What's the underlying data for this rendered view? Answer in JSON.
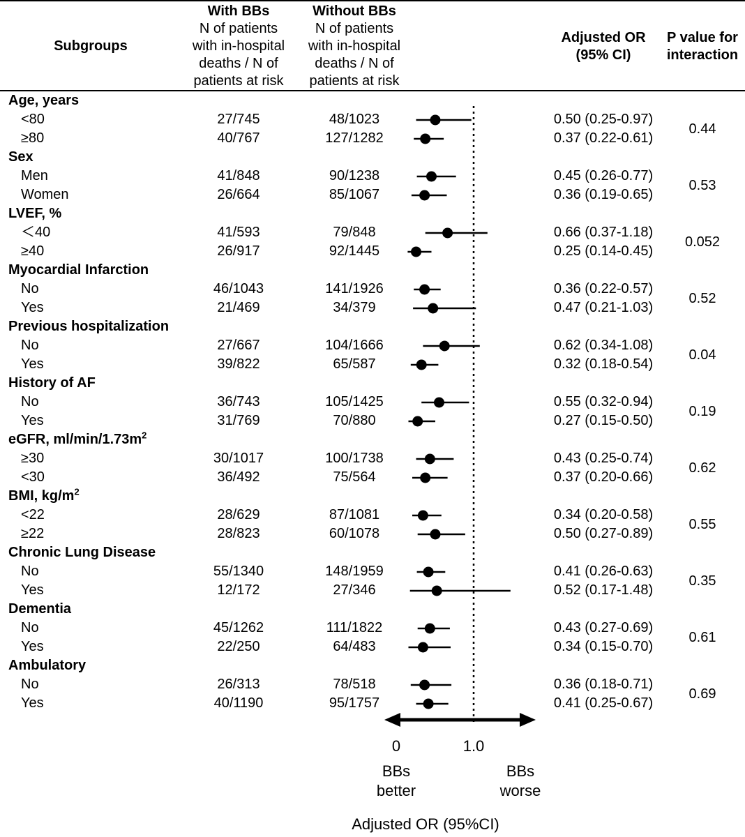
{
  "header": {
    "subgroups": "Subgroups",
    "with_title": "With BBs",
    "with_l1": "N of patients",
    "with_l2": "with in-hospital",
    "with_l3": "deaths / N of",
    "with_l4": "patients at risk",
    "without_title": "Without BBs",
    "without_l1": "N of patients",
    "without_l2": "with in-hospital",
    "without_l3": "deaths / N of",
    "without_l4": "patients at risk",
    "or_l1": "Adjusted OR",
    "or_l2": "(95% CI)",
    "p_l1": "P value for",
    "p_l2": "interaction"
  },
  "groups": [
    {
      "label": "Age, years",
      "p": "0.44",
      "rows": [
        {
          "sub": "<80",
          "with": "27/745",
          "without": "48/1023",
          "or_text": "0.50 (0.25-0.97)"
        },
        {
          "sub": "≥80",
          "with": "40/767",
          "without": "127/1282",
          "or_text": "0.37 (0.22-0.61)"
        }
      ]
    },
    {
      "label": "Sex",
      "p": "0.53",
      "rows": [
        {
          "sub": "Men",
          "with": "41/848",
          "without": "90/1238",
          "or_text": "0.45 (0.26-0.77)"
        },
        {
          "sub": "Women",
          "with": "26/664",
          "without": "85/1067",
          "or_text": "0.36 (0.19-0.65)"
        }
      ]
    },
    {
      "label": "LVEF, %",
      "p": "0.052",
      "rows": [
        {
          "sub": "＜40",
          "with": "41/593",
          "without": "79/848",
          "or_text": "0.66 (0.37-1.18)"
        },
        {
          "sub": "≥40",
          "with": "26/917",
          "without": "92/1445",
          "or_text": "0.25 (0.14-0.45)"
        }
      ]
    },
    {
      "label": "Myocardial Infarction",
      "p": "0.52",
      "rows": [
        {
          "sub": "No",
          "with": "46/1043",
          "without": "141/1926",
          "or_text": "0.36 (0.22-0.57)"
        },
        {
          "sub": "Yes",
          "with": "21/469",
          "without": "34/379",
          "or_text": "0.47 (0.21-1.03)"
        }
      ]
    },
    {
      "label": "Previous hospitalization",
      "p": "0.04",
      "rows": [
        {
          "sub": "No",
          "with": "27/667",
          "without": "104/1666",
          "or_text": "0.62 (0.34-1.08)"
        },
        {
          "sub": "Yes",
          "with": "39/822",
          "without": "65/587",
          "or_text": "0.32 (0.18-0.54)"
        }
      ]
    },
    {
      "label": "History of AF",
      "p": "0.19",
      "rows": [
        {
          "sub": "No",
          "with": "36/743",
          "without": "105/1425",
          "or_text": "0.55 (0.32-0.94)"
        },
        {
          "sub": "Yes",
          "with": "31/769",
          "without": "70/880",
          "or_text": "0.27 (0.15-0.50)"
        }
      ]
    },
    {
      "label": "eGFR, ml/min/1.73m",
      "label_sup": "2",
      "p": "0.62",
      "rows": [
        {
          "sub": "≥30",
          "with": "30/1017",
          "without": "100/1738",
          "or_text": "0.43 (0.25-0.74)"
        },
        {
          "sub": "<30",
          "with": "36/492",
          "without": "75/564",
          "or_text": "0.37 (0.20-0.66)"
        }
      ]
    },
    {
      "label": "BMI, kg/m",
      "label_sup": "2",
      "p": "0.55",
      "rows": [
        {
          "sub": "<22",
          "with": "28/629",
          "without": "87/1081",
          "or_text": "0.34 (0.20-0.58)"
        },
        {
          "sub": "≥22",
          "with": "28/823",
          "without": "60/1078",
          "or_text": "0.50 (0.27-0.89)"
        }
      ]
    },
    {
      "label": "Chronic Lung Disease",
      "p": "0.35",
      "rows": [
        {
          "sub": "No",
          "with": "55/1340",
          "without": "148/1959",
          "or_text": "0.41 (0.26-0.63)"
        },
        {
          "sub": "Yes",
          "with": "12/172",
          "without": "27/346",
          "or_text": "0.52 (0.17-1.48)"
        }
      ]
    },
    {
      "label": "Dementia",
      "p": "0.61",
      "rows": [
        {
          "sub": "No",
          "with": "45/1262",
          "without": "111/1822",
          "or_text": "0.43 (0.27-0.69)"
        },
        {
          "sub": "Yes",
          "with": "22/250",
          "without": "64/483",
          "or_text": "0.34 (0.15-0.70)"
        }
      ]
    },
    {
      "label": "Ambulatory",
      "p": "0.69",
      "rows": [
        {
          "sub": "No",
          "with": "26/313",
          "without": "78/518",
          "or_text": "0.36 (0.18-0.71)"
        },
        {
          "sub": "Yes",
          "with": "40/1190",
          "without": "95/1757",
          "or_text": "0.41 (0.25-0.67)"
        }
      ]
    }
  ],
  "axis": {
    "tick_0": "0",
    "tick_1": "1.0",
    "better_l1": "BBs",
    "better_l2": "better",
    "worse_l1": "BBs",
    "worse_l2": "worse",
    "xlabel": "Adjusted OR (95%CI)"
  },
  "chart_data": {
    "type": "forest",
    "title": "",
    "xlabel": "Adjusted OR (95%CI)",
    "reference_line": 1.0,
    "xlim": [
      -0.15,
      1.8
    ],
    "points": [
      {
        "group": "Age, years",
        "sub": "<80",
        "or": 0.5,
        "lo": 0.25,
        "hi": 0.97
      },
      {
        "group": "Age, years",
        "sub": "≥80",
        "or": 0.37,
        "lo": 0.22,
        "hi": 0.61
      },
      {
        "group": "Sex",
        "sub": "Men",
        "or": 0.45,
        "lo": 0.26,
        "hi": 0.77
      },
      {
        "group": "Sex",
        "sub": "Women",
        "or": 0.36,
        "lo": 0.19,
        "hi": 0.65
      },
      {
        "group": "LVEF, %",
        "sub": "＜40",
        "or": 0.66,
        "lo": 0.37,
        "hi": 1.18
      },
      {
        "group": "LVEF, %",
        "sub": "≥40",
        "or": 0.25,
        "lo": 0.14,
        "hi": 0.45
      },
      {
        "group": "Myocardial Infarction",
        "sub": "No",
        "or": 0.36,
        "lo": 0.22,
        "hi": 0.57
      },
      {
        "group": "Myocardial Infarction",
        "sub": "Yes",
        "or": 0.47,
        "lo": 0.21,
        "hi": 1.03
      },
      {
        "group": "Previous hospitalization",
        "sub": "No",
        "or": 0.62,
        "lo": 0.34,
        "hi": 1.08
      },
      {
        "group": "Previous hospitalization",
        "sub": "Yes",
        "or": 0.32,
        "lo": 0.18,
        "hi": 0.54
      },
      {
        "group": "History of AF",
        "sub": "No",
        "or": 0.55,
        "lo": 0.32,
        "hi": 0.94
      },
      {
        "group": "History of AF",
        "sub": "Yes",
        "or": 0.27,
        "lo": 0.15,
        "hi": 0.5
      },
      {
        "group": "eGFR",
        "sub": "≥30",
        "or": 0.43,
        "lo": 0.25,
        "hi": 0.74
      },
      {
        "group": "eGFR",
        "sub": "<30",
        "or": 0.37,
        "lo": 0.2,
        "hi": 0.66
      },
      {
        "group": "BMI",
        "sub": "<22",
        "or": 0.34,
        "lo": 0.2,
        "hi": 0.58
      },
      {
        "group": "BMI",
        "sub": "≥22",
        "or": 0.5,
        "lo": 0.27,
        "hi": 0.89
      },
      {
        "group": "Chronic Lung Disease",
        "sub": "No",
        "or": 0.41,
        "lo": 0.26,
        "hi": 0.63
      },
      {
        "group": "Chronic Lung Disease",
        "sub": "Yes",
        "or": 0.52,
        "lo": 0.17,
        "hi": 1.48
      },
      {
        "group": "Dementia",
        "sub": "No",
        "or": 0.43,
        "lo": 0.27,
        "hi": 0.69
      },
      {
        "group": "Dementia",
        "sub": "Yes",
        "or": 0.34,
        "lo": 0.15,
        "hi": 0.7
      },
      {
        "group": "Ambulatory",
        "sub": "No",
        "or": 0.36,
        "lo": 0.18,
        "hi": 0.71
      },
      {
        "group": "Ambulatory",
        "sub": "Yes",
        "or": 0.41,
        "lo": 0.25,
        "hi": 0.67
      }
    ]
  }
}
